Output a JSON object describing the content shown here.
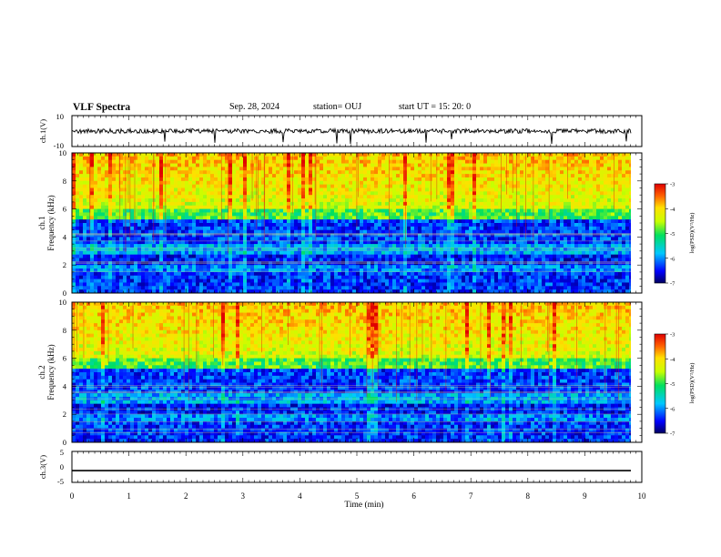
{
  "header": {
    "title": "VLF Spectra",
    "date": "Sep. 28, 2024",
    "station": "station= OUJ",
    "start": "start  UT  =  15: 20: 0"
  },
  "chart_data": [
    {
      "type": "line",
      "panel": "ch1-waveform",
      "ylabel": "ch.1(V)",
      "ylim": [
        -10,
        10
      ],
      "ytick_labels": [
        "10",
        "-10"
      ],
      "note_values": "noisy waveform centered near 0 V with spikes"
    },
    {
      "type": "heatmap",
      "panel": "ch1-spectrogram",
      "ylabel": "ch.1 Frequency  (kHz)",
      "ylim": [
        0,
        10
      ],
      "ytick_labels": [
        "0",
        "2",
        "4",
        "6",
        "8",
        "10"
      ],
      "colorbar": {
        "label": "log(PSD)(V²/Hz)",
        "range": [
          -7,
          -3
        ],
        "tick_labels": [
          "-3",
          "-4",
          "-5",
          "-6",
          "-7"
        ]
      }
    },
    {
      "type": "heatmap",
      "panel": "ch2-spectrogram",
      "ylabel": "ch.2 Frequency  (kHz)",
      "ylim": [
        0,
        10
      ],
      "ytick_labels": [
        "0",
        "2",
        "4",
        "6",
        "8",
        "10"
      ],
      "colorbar": {
        "label": "log(PSD)(V²/Hz)",
        "range": [
          -7,
          -3
        ],
        "tick_labels": [
          "-3",
          "-4",
          "-5",
          "-6",
          "-7"
        ]
      }
    },
    {
      "type": "line",
      "panel": "ch3-waveform",
      "ylabel": "ch.3(V)",
      "ylim": [
        -5,
        5
      ],
      "ytick_labels": [
        "5",
        "0",
        "-5"
      ],
      "y_values": [
        -1.2
      ]
    }
  ],
  "x_axis": {
    "label": "Time  (min)",
    "range": [
      0,
      10
    ],
    "tick_labels": [
      "0",
      "1",
      "2",
      "3",
      "4",
      "5",
      "6",
      "7",
      "8",
      "9",
      "10"
    ]
  },
  "labels": {
    "ch1v": "ch.1(V)",
    "ch1f": "ch.1",
    "freq": "Frequency  (kHz)",
    "ch2f": "ch.2",
    "ch3v": "ch.3(V)"
  }
}
